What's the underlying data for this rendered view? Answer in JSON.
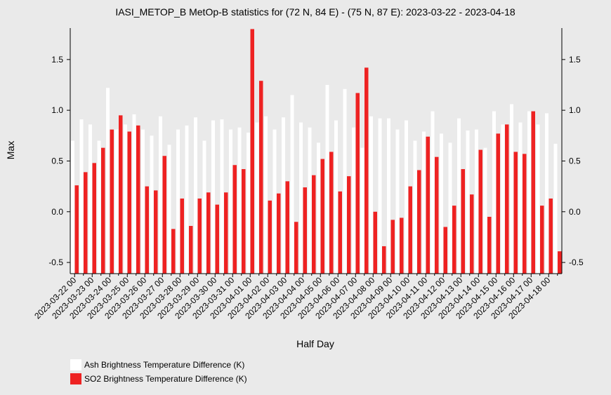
{
  "chart_data": {
    "type": "bar",
    "title": "IASI_METOP_B MetOp-B statistics for (72 N, 84 E) - (75 N, 87 E): 2023-03-22 - 2023-04-18",
    "x_label": "Half Day",
    "y_label": "Max",
    "categories": [
      "2023-03-22 00",
      null,
      "2023-03-23 00",
      null,
      "2023-03-24 00",
      null,
      "2023-03-25 00",
      null,
      "2023-03-26 00",
      null,
      "2023-03-27 00",
      null,
      "2023-03-28 00",
      null,
      "2023-03-29 00",
      null,
      "2023-03-30 00",
      null,
      "2023-03-31 00",
      null,
      "2023-04-01 00",
      null,
      "2023-04-02 00",
      null,
      "2023-04-03 00",
      null,
      "2023-04-04 00",
      null,
      "2023-04-05 00",
      null,
      "2023-04-06 00",
      null,
      "2023-04-07 00",
      null,
      "2023-04-08 00",
      null,
      "2023-04-09 00",
      null,
      "2023-04-10 00",
      null,
      "2023-04-11 00",
      null,
      "2023-04-12 00",
      null,
      "2023-04-13 00",
      null,
      "2023-04-14 00",
      null,
      "2023-04-15 00",
      null,
      "2023-04-16 00",
      null,
      "2023-04-17 00",
      null,
      "2023-04-18 00",
      null
    ],
    "series": [
      {
        "name": "Ash Brightness Temperature Difference (K)",
        "color": "#ffffff",
        "values": [
          0.7,
          0.91,
          0.86,
          0.7,
          1.22,
          0.81,
          0.86,
          0.96,
          0.81,
          0.75,
          0.94,
          0.66,
          0.81,
          0.85,
          0.93,
          0.7,
          0.9,
          0.91,
          0.81,
          0.83,
          0.78,
          0.88,
          0.94,
          0.81,
          0.93,
          1.15,
          0.88,
          0.83,
          0.68,
          1.25,
          0.9,
          1.21,
          0.83,
          0.63,
          0.94,
          0.92,
          0.92,
          0.81,
          0.9,
          0.7,
          0.79,
          0.99,
          0.77,
          0.68,
          0.92,
          0.8,
          0.81,
          0.63,
          0.99,
          0.86,
          1.06,
          0.88,
          0.99,
          0.86,
          0.97,
          0.67
        ]
      },
      {
        "name": "SO2 Brightness Temperature Difference (K)",
        "color": "#ee2222",
        "values": [
          0.26,
          0.39,
          0.48,
          0.63,
          0.81,
          0.95,
          0.79,
          0.85,
          0.25,
          0.21,
          0.55,
          -0.17,
          0.13,
          -0.14,
          0.13,
          0.19,
          0.07,
          0.19,
          0.46,
          0.42,
          1.8,
          1.29,
          0.11,
          0.18,
          0.3,
          -0.1,
          0.24,
          0.36,
          0.52,
          0.59,
          0.2,
          0.35,
          1.17,
          1.42,
          0.0,
          -0.34,
          -0.08,
          -0.06,
          0.25,
          0.41,
          0.74,
          0.54,
          -0.15,
          0.06,
          0.42,
          0.17,
          0.61,
          -0.05,
          0.77,
          0.86,
          0.59,
          0.57,
          0.99,
          0.06,
          0.13,
          -0.39
        ]
      }
    ],
    "ylim": [
      -0.61,
      1.81
    ],
    "yticks": [
      -0.5,
      {
        "value": 0,
        "label": "0.0"
      },
      0.5,
      {
        "value": 1,
        "label": "1.0"
      },
      1.5
    ]
  }
}
